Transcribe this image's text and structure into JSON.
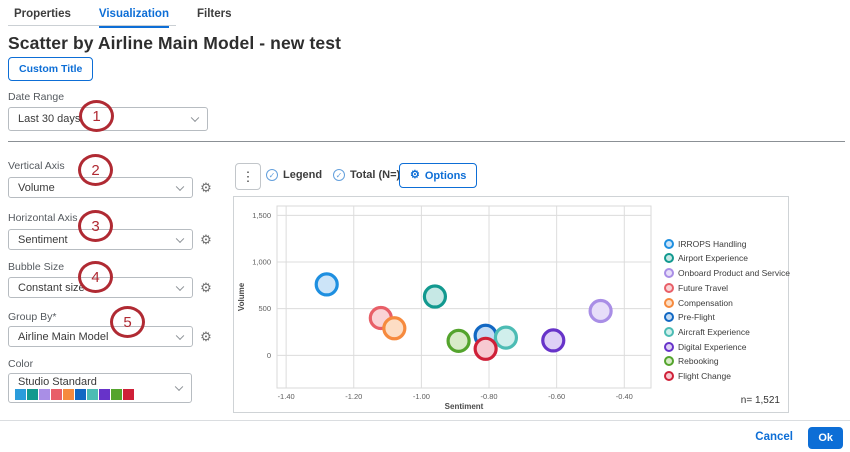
{
  "accent_color": "#0d6ed6",
  "tabs": {
    "items": [
      {
        "label": "Properties",
        "active": false
      },
      {
        "label": "Visualization",
        "active": true
      },
      {
        "label": "Filters",
        "active": false
      }
    ]
  },
  "header": {
    "title": "Scatter by Airline Main Model - new test",
    "custom_title_button": "Custom Title"
  },
  "annotation": {
    "color": "#b02a33",
    "steps": [
      "1",
      "2",
      "3",
      "4",
      "5"
    ]
  },
  "fields": {
    "date_range": {
      "label": "Date Range",
      "value": "Last 30 days"
    },
    "vertical_axis": {
      "label": "Vertical Axis",
      "value": "Volume"
    },
    "horizontal_axis": {
      "label": "Horizontal Axis",
      "value": "Sentiment"
    },
    "bubble_size": {
      "label": "Bubble Size",
      "value": "Constant size"
    },
    "group_by": {
      "label": "Group By*",
      "value": "Airline Main Model"
    },
    "color": {
      "label": "Color",
      "value": "Studio Standard",
      "swatches": [
        "#2b9cdb",
        "#12998f",
        "#a98ee6",
        "#e85f68",
        "#f68a3e",
        "#1268c3",
        "#4cbcb4",
        "#6733c9",
        "#54a42d",
        "#cf2038"
      ]
    }
  },
  "chart_toolbar": {
    "legend_label": "Legend",
    "total_label": "Total (N=)",
    "options_label": "Options"
  },
  "chart_data": {
    "type": "scatter",
    "xlabel": "Sentiment",
    "ylabel": "Volume",
    "xlim": [
      -1.427,
      -0.321
    ],
    "ylim": [
      -350,
      1600
    ],
    "xticks": [
      -1.4,
      -1.2,
      -1.0,
      -0.8,
      -0.6,
      -0.4
    ],
    "xtick_labels": [
      "-1.40",
      "-1.20",
      "-1.00",
      "-0.80",
      "-0.60",
      "-0.40"
    ],
    "yticks": [
      0,
      500,
      1000,
      1500
    ],
    "ytick_labels": [
      "0",
      "500",
      "1,000",
      "1,500"
    ],
    "grid": true,
    "legend_position": "right",
    "n_label": "n= 1,521",
    "bubble_radius": 10.5,
    "series": [
      {
        "name": "IRROPS Handling",
        "x": -1.28,
        "y": 760,
        "color": "#1e8fe0",
        "fill": "#cce4f8"
      },
      {
        "name": "Airport Experience",
        "x": -0.96,
        "y": 630,
        "color": "#12998f",
        "fill": "#c6e8e5"
      },
      {
        "name": "Onboard Product and Service",
        "x": -0.47,
        "y": 475,
        "color": "#a98ee6",
        "fill": "#e7def9"
      },
      {
        "name": "Future Travel",
        "x": -1.12,
        "y": 400,
        "color": "#e85f68",
        "fill": "#fad3d6"
      },
      {
        "name": "Compensation",
        "x": -1.08,
        "y": 290,
        "color": "#f68a3e",
        "fill": "#fdddc4"
      },
      {
        "name": "Pre-Flight",
        "x": -0.81,
        "y": 210,
        "color": "#1268c3",
        "fill": "#c3dbf4"
      },
      {
        "name": "Aircraft Experience",
        "x": -0.75,
        "y": 190,
        "color": "#4cbcb4",
        "fill": "#d0efec"
      },
      {
        "name": "Digital Experience",
        "x": -0.61,
        "y": 160,
        "color": "#6733c9",
        "fill": "#ded0f6"
      },
      {
        "name": "Rebooking",
        "x": -0.89,
        "y": 155,
        "color": "#54a42d",
        "fill": "#d8ebc8"
      },
      {
        "name": "Flight Change",
        "x": -0.81,
        "y": 70,
        "color": "#cf2038",
        "fill": "#f7c9d1"
      }
    ]
  },
  "footer": {
    "cancel_label": "Cancel",
    "ok_label": "Ok"
  }
}
